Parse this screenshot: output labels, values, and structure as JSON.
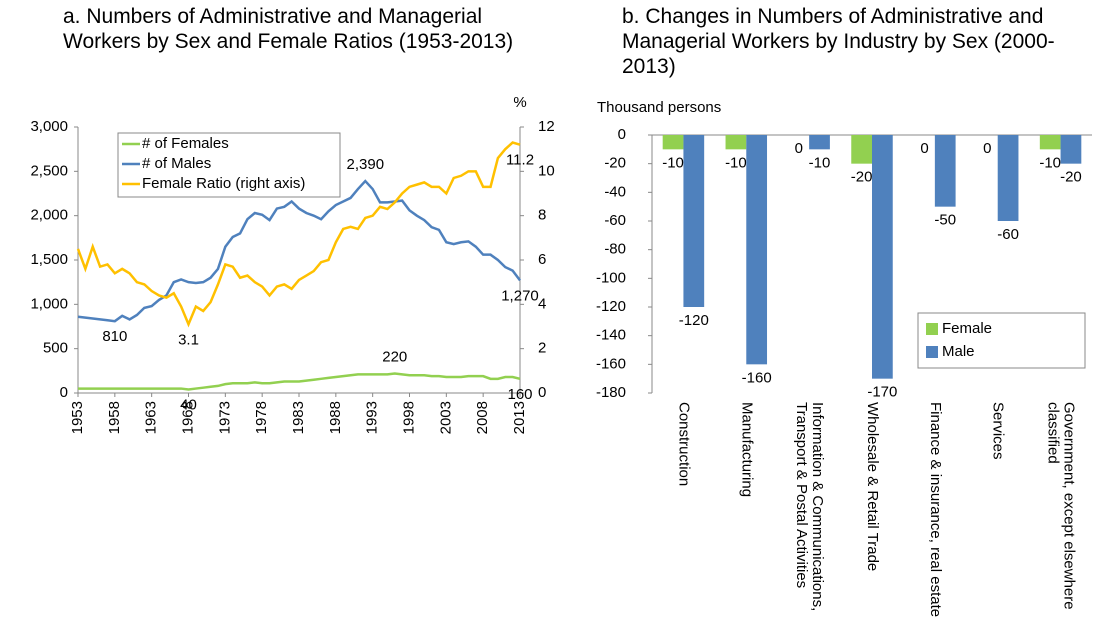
{
  "chart_data": [
    {
      "type": "line",
      "title": "a. Numbers of Administrative and Managerial Workers by Sex and Female Ratios (1953-2013)",
      "y2label": "%",
      "x": [
        1953,
        1954,
        1955,
        1956,
        1957,
        1958,
        1959,
        1960,
        1961,
        1962,
        1963,
        1964,
        1965,
        1966,
        1967,
        1968,
        1969,
        1970,
        1971,
        1972,
        1973,
        1974,
        1975,
        1976,
        1977,
        1978,
        1979,
        1980,
        1981,
        1982,
        1983,
        1984,
        1985,
        1986,
        1987,
        1988,
        1989,
        1990,
        1991,
        1992,
        1993,
        1994,
        1995,
        1996,
        1997,
        1998,
        1999,
        2000,
        2001,
        2002,
        2003,
        2004,
        2005,
        2006,
        2007,
        2008,
        2009,
        2010,
        2011,
        2012,
        2013
      ],
      "xlim": [
        1953,
        2013
      ],
      "xticks": [
        1953,
        1958,
        1963,
        1968,
        1973,
        1978,
        1983,
        1988,
        1993,
        1998,
        2003,
        2008,
        2013
      ],
      "ylim": [
        0,
        3000
      ],
      "yticks": [
        0,
        {
          "value": 500,
          "label": "500"
        },
        {
          "value": 1000,
          "label": "1,000"
        },
        {
          "value": 1500,
          "label": "1,500"
        },
        {
          "value": 2000,
          "label": "2,000"
        },
        {
          "value": 2500,
          "label": "2,500"
        },
        {
          "value": 3000,
          "label": "3,000"
        }
      ],
      "y2lim": [
        0,
        12
      ],
      "y2ticks": [
        0,
        2,
        4,
        6,
        8,
        10,
        12
      ],
      "grid": false,
      "legend": "upper left",
      "series": [
        {
          "name": "# of Females",
          "color": "#92d050",
          "values": [
            50,
            50,
            50,
            50,
            50,
            50,
            50,
            50,
            50,
            50,
            50,
            50,
            50,
            50,
            50,
            40,
            50,
            60,
            70,
            80,
            100,
            110,
            110,
            110,
            120,
            110,
            110,
            120,
            130,
            130,
            130,
            140,
            150,
            160,
            170,
            180,
            190,
            200,
            210,
            210,
            210,
            210,
            210,
            220,
            210,
            200,
            200,
            200,
            190,
            190,
            180,
            180,
            180,
            190,
            190,
            190,
            160,
            160,
            180,
            180,
            160
          ],
          "value_labels": [
            null,
            null,
            null,
            null,
            null,
            null,
            null,
            null,
            null,
            null,
            null,
            null,
            null,
            null,
            null,
            "40",
            null,
            null,
            null,
            null,
            null,
            null,
            null,
            null,
            null,
            null,
            null,
            null,
            null,
            null,
            null,
            null,
            null,
            null,
            null,
            null,
            null,
            null,
            null,
            null,
            null,
            null,
            null,
            "220",
            null,
            null,
            null,
            null,
            null,
            null,
            null,
            null,
            null,
            null,
            null,
            null,
            null,
            null,
            null,
            null,
            "160"
          ]
        },
        {
          "name": "# of Males",
          "color": "#4f81bd",
          "values": [
            860,
            850,
            840,
            830,
            820,
            810,
            870,
            830,
            880,
            960,
            980,
            1050,
            1100,
            1250,
            1280,
            1250,
            1240,
            1250,
            1300,
            1400,
            1650,
            1760,
            1800,
            1960,
            2030,
            2010,
            1950,
            2080,
            2100,
            2160,
            2080,
            2030,
            2000,
            1960,
            2050,
            2120,
            2160,
            2200,
            2300,
            2390,
            2300,
            2150,
            2150,
            2160,
            2170,
            2060,
            2000,
            1950,
            1870,
            1840,
            1700,
            1680,
            1700,
            1710,
            1650,
            1560,
            1560,
            1500,
            1420,
            1380,
            1270
          ],
          "value_labels": [
            null,
            null,
            null,
            null,
            null,
            "810",
            null,
            null,
            null,
            null,
            null,
            null,
            null,
            null,
            null,
            null,
            null,
            null,
            null,
            null,
            null,
            null,
            null,
            null,
            null,
            null,
            null,
            null,
            null,
            null,
            null,
            null,
            null,
            null,
            null,
            null,
            null,
            null,
            null,
            "2,390",
            null,
            null,
            null,
            null,
            null,
            null,
            null,
            null,
            null,
            null,
            null,
            null,
            null,
            null,
            null,
            null,
            null,
            null,
            null,
            null,
            "1,270"
          ]
        },
        {
          "name": "Female Ratio (right axis)",
          "color": "#ffc000",
          "axis": "y2",
          "values": [
            6.5,
            5.6,
            6.6,
            5.7,
            5.8,
            5.4,
            5.6,
            5.4,
            5.0,
            4.9,
            4.6,
            4.4,
            4.3,
            4.5,
            3.9,
            3.1,
            3.9,
            3.7,
            4.1,
            4.9,
            5.8,
            5.7,
            5.2,
            5.3,
            5.0,
            4.8,
            4.4,
            4.8,
            4.9,
            4.7,
            5.1,
            5.3,
            5.5,
            5.9,
            6.0,
            6.8,
            7.4,
            7.5,
            7.4,
            7.9,
            8.0,
            8.4,
            8.3,
            8.6,
            9.0,
            9.3,
            9.4,
            9.5,
            9.3,
            9.3,
            9.0,
            9.7,
            9.8,
            10.0,
            10.0,
            9.3,
            9.3,
            10.6,
            11.0,
            11.3,
            11.2
          ],
          "value_labels": [
            null,
            null,
            null,
            null,
            null,
            null,
            null,
            null,
            null,
            null,
            null,
            null,
            null,
            null,
            null,
            "3.1",
            null,
            null,
            null,
            null,
            null,
            null,
            null,
            null,
            null,
            null,
            null,
            null,
            null,
            null,
            null,
            null,
            null,
            null,
            null,
            null,
            null,
            null,
            null,
            null,
            null,
            null,
            null,
            null,
            null,
            null,
            null,
            null,
            null,
            null,
            null,
            null,
            null,
            null,
            null,
            null,
            null,
            null,
            null,
            null,
            "11.2"
          ]
        }
      ]
    },
    {
      "type": "bar",
      "title": "b. Changes in Numbers of Administrative and Managerial Workers by Industry by Sex (2000-2013)",
      "ylabel": "Thousand persons",
      "categories": [
        "Construction",
        "Manufacturing",
        "Information & Communications, Transport & Postal Activities",
        "Wholesale & Retail Trade",
        "Finance & insurance, real estate",
        "Services",
        "Government, except elsewhere classified"
      ],
      "ylim": [
        -180,
        0
      ],
      "yticks": [
        0,
        -20,
        -40,
        -60,
        -80,
        -100,
        -120,
        -140,
        -160,
        -180
      ],
      "grid": false,
      "legend": "lower right",
      "series": [
        {
          "name": "Female",
          "color": "#92d050",
          "values": [
            -10,
            -10,
            0,
            -20,
            0,
            0,
            -10
          ]
        },
        {
          "name": "Male",
          "color": "#4f81bd",
          "values": [
            -120,
            -160,
            -10,
            -170,
            -50,
            -60,
            -20
          ]
        }
      ]
    }
  ]
}
